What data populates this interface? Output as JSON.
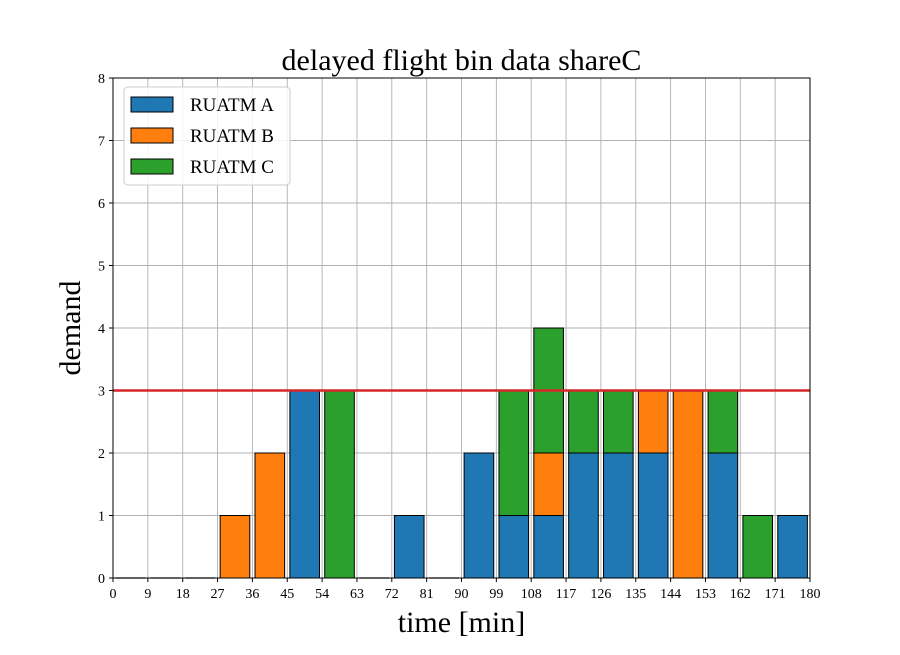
{
  "chart_data": {
    "type": "bar",
    "stacked": true,
    "title": "delayed flight bin data shareC",
    "xlabel": "time [min]",
    "ylabel": "demand",
    "xlim": [
      0,
      180
    ],
    "ylim": [
      0,
      8
    ],
    "grid": true,
    "legend_position": "top-left",
    "x_ticks": [
      0,
      9,
      18,
      27,
      36,
      45,
      54,
      63,
      72,
      81,
      90,
      99,
      108,
      117,
      126,
      135,
      144,
      153,
      162,
      171,
      180
    ],
    "y_ticks": [
      0,
      1,
      2,
      3,
      4,
      5,
      6,
      7,
      8
    ],
    "bin_starts": [
      0,
      9,
      18,
      27,
      36,
      45,
      54,
      63,
      72,
      81,
      90,
      99,
      108,
      117,
      126,
      135,
      144,
      153,
      162,
      171
    ],
    "bin_width": 9,
    "series": [
      {
        "name": "RUATM A",
        "color": "#1f77b4",
        "values": [
          0,
          0,
          0,
          0,
          0,
          3,
          0,
          0,
          1,
          0,
          2,
          1,
          1,
          2,
          2,
          2,
          0,
          2,
          0,
          1
        ]
      },
      {
        "name": "RUATM B",
        "color": "#ff7f0e",
        "values": [
          0,
          0,
          0,
          1,
          2,
          0,
          0,
          0,
          0,
          0,
          0,
          0,
          1,
          0,
          0,
          1,
          3,
          0,
          0,
          0
        ]
      },
      {
        "name": "RUATM C",
        "color": "#2ca02c",
        "values": [
          0,
          0,
          0,
          0,
          0,
          0,
          3,
          0,
          0,
          0,
          0,
          2,
          2,
          1,
          1,
          0,
          0,
          1,
          1,
          0
        ]
      }
    ],
    "capacity_line": {
      "y": 3,
      "color": "#d62728"
    }
  }
}
